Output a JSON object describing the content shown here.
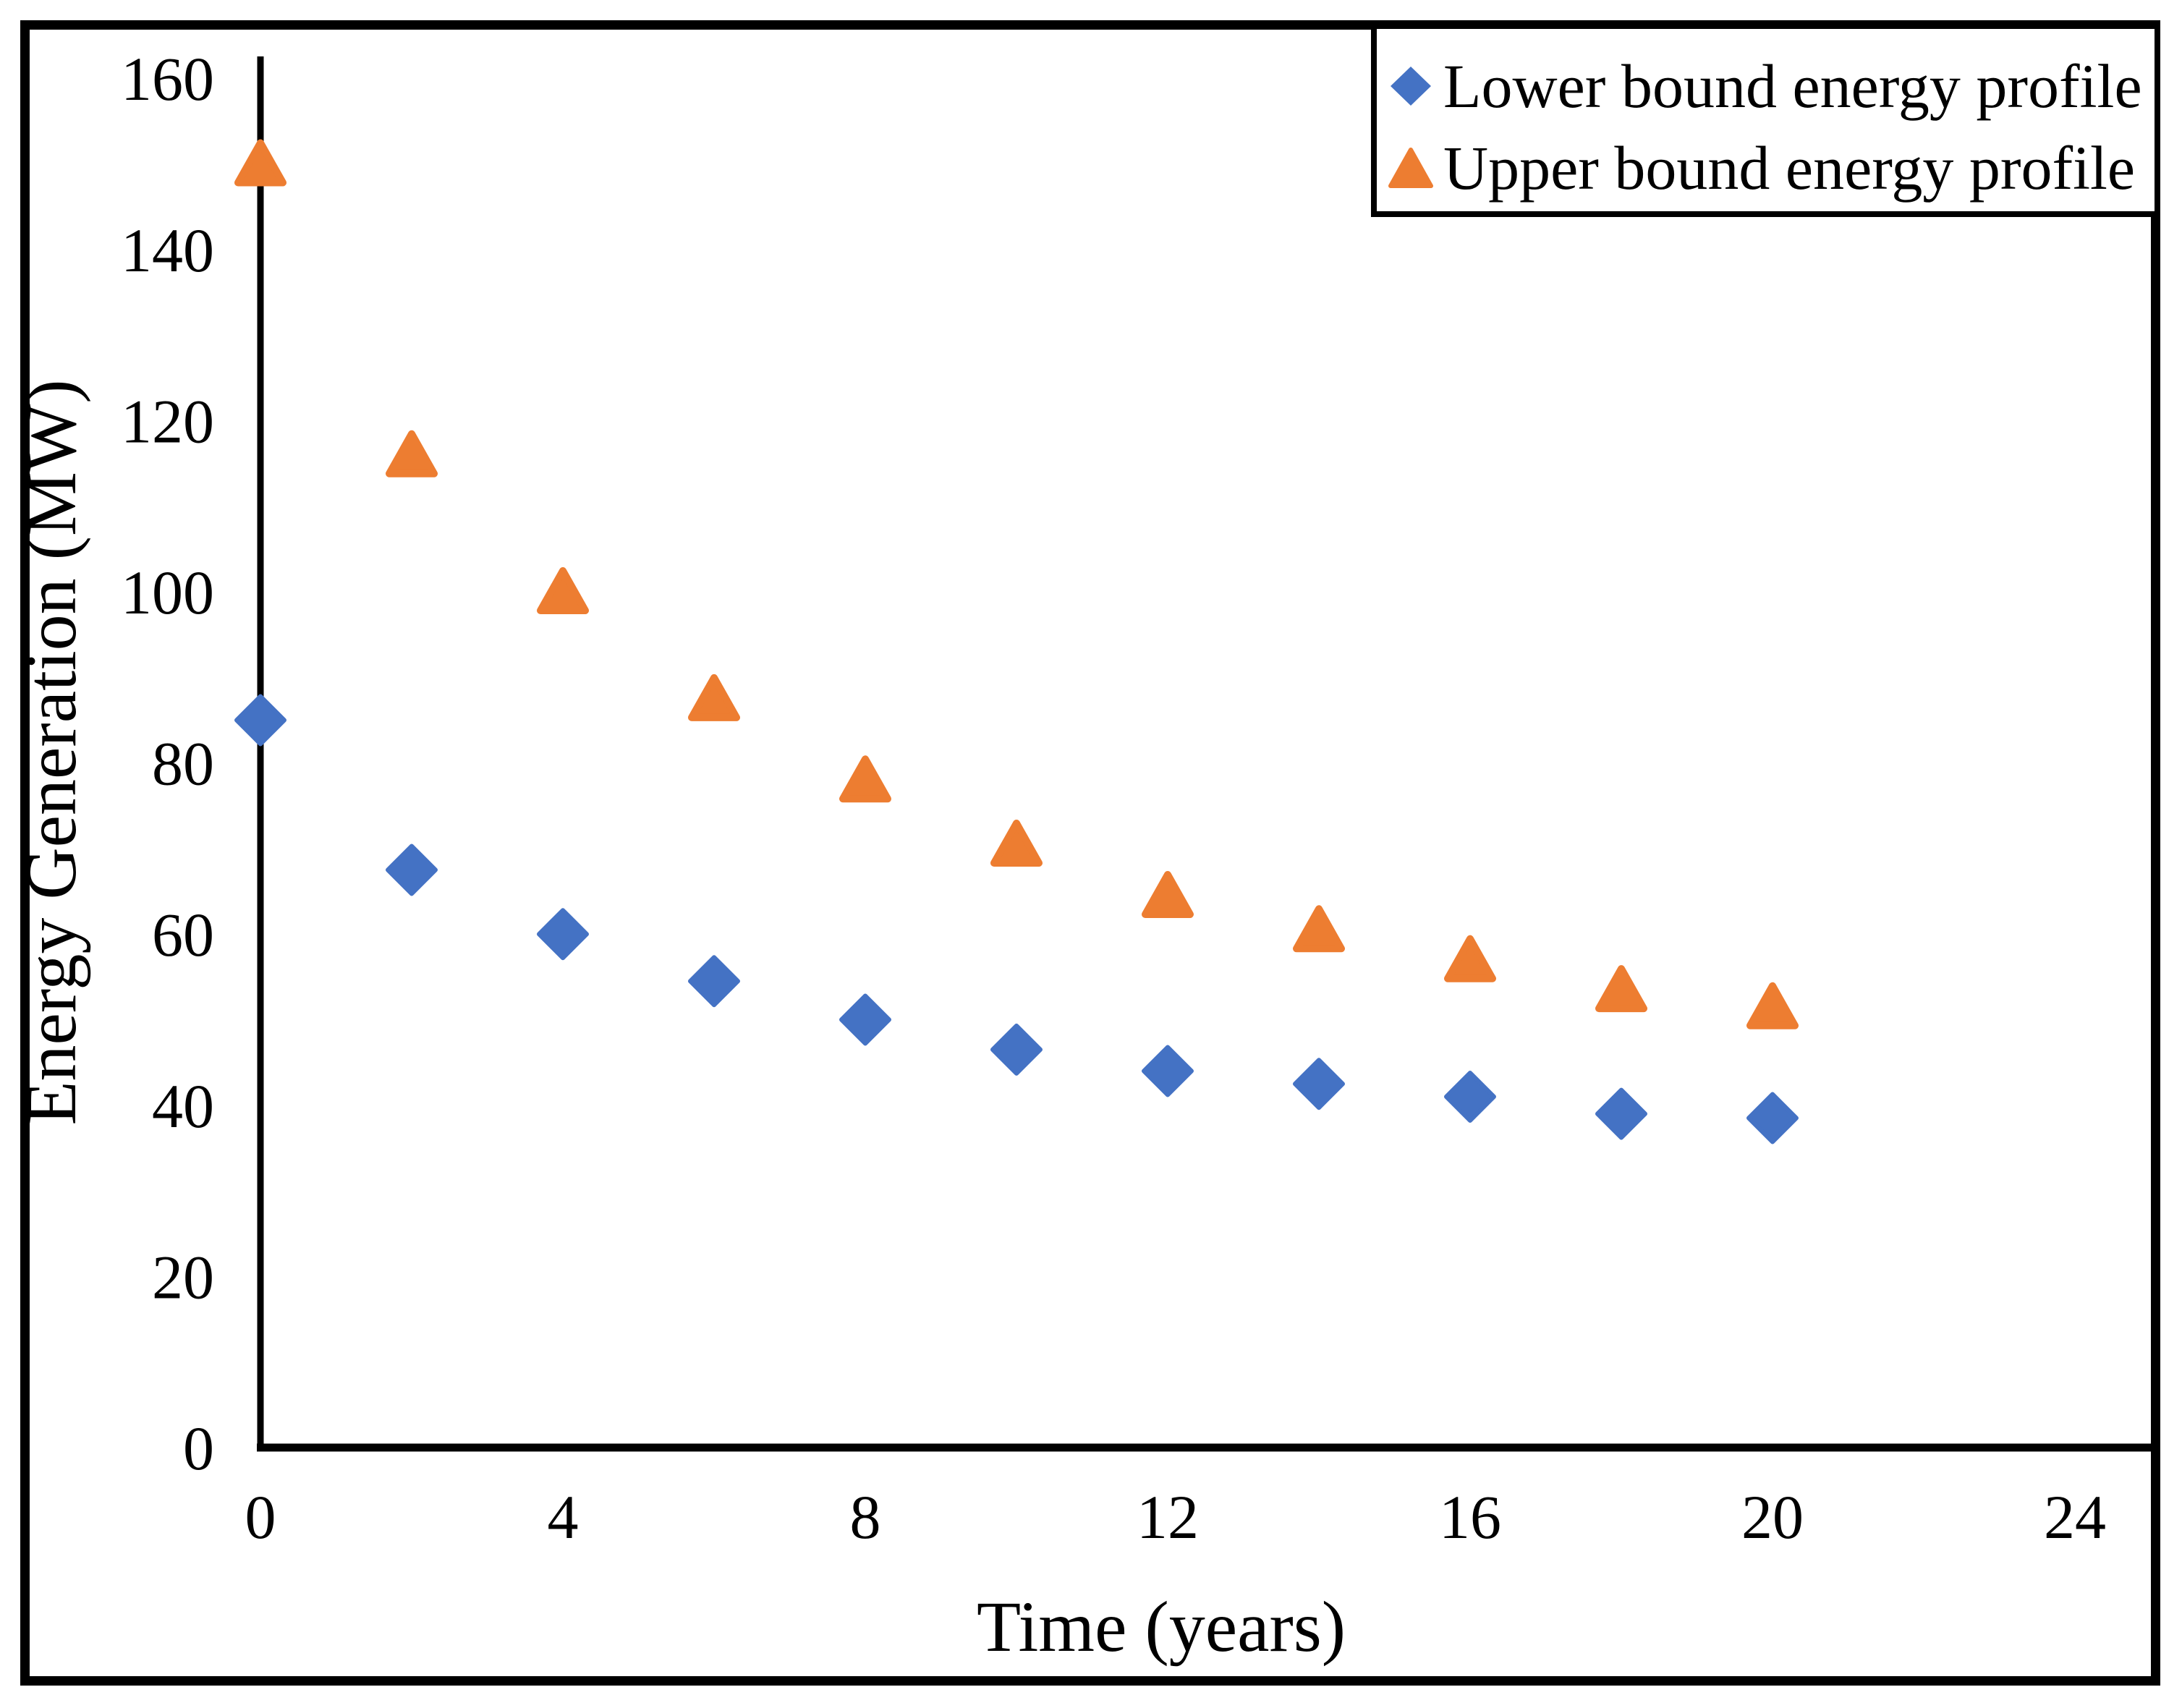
{
  "figure": {
    "background_color": "#ffffff",
    "border_color": "#000000",
    "text_color": "#000000"
  },
  "chart_data": {
    "type": "scatter",
    "title": "",
    "xlabel": "Time (years)",
    "ylabel": "Energy Generation (MW)",
    "xlim": [
      0,
      24
    ],
    "ylim": [
      0,
      160
    ],
    "x_ticks": [
      0,
      4,
      8,
      12,
      16,
      20,
      24
    ],
    "y_ticks": [
      0,
      20,
      40,
      60,
      80,
      100,
      120,
      140,
      160
    ],
    "grid": false,
    "legend_position": "top-right",
    "x": [
      0,
      2,
      4,
      6,
      8,
      10,
      12,
      14,
      16,
      18,
      20
    ],
    "series": [
      {
        "name": "Lower bound energy profile",
        "marker": "diamond",
        "color": "#4472C4",
        "values": [
          85,
          67.5,
          60,
          54.5,
          50,
          46.5,
          44,
          42.5,
          41,
          39,
          38.5
        ]
      },
      {
        "name": "Upper bound energy profile",
        "marker": "triangle",
        "color": "#ED7D31",
        "values": [
          150,
          116,
          100,
          87.5,
          78,
          70.5,
          64.5,
          60.5,
          57,
          53.5,
          51.5
        ]
      }
    ]
  }
}
